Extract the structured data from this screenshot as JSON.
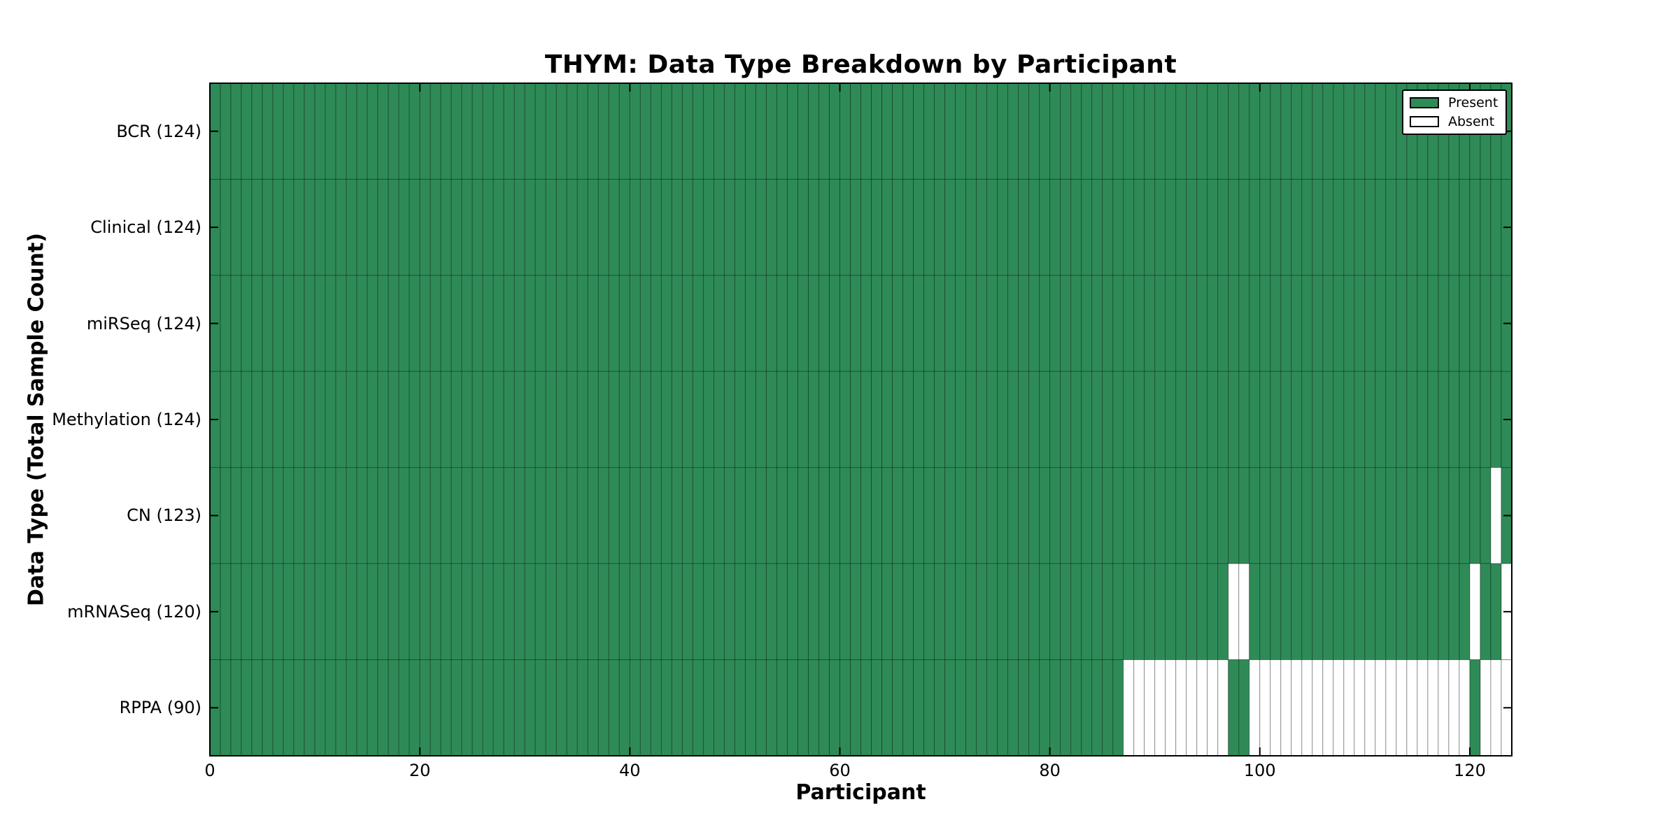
{
  "chart_data": {
    "type": "heatmap",
    "title": "THYM: Data Type Breakdown by Participant",
    "xlabel": "Participant",
    "ylabel": "Data Type (Total Sample Count)",
    "x_ticks": [
      0,
      20,
      40,
      60,
      80,
      100,
      120
    ],
    "xlim": [
      0,
      124
    ],
    "n_participants": 124,
    "grid": false,
    "legend_position": "upper right",
    "legend": [
      {
        "label": "Present",
        "color": "#2E8B57"
      },
      {
        "label": "Absent",
        "color": "#FFFFFF"
      }
    ],
    "colors": {
      "present": "#2E8B57",
      "absent": "#FFFFFF",
      "cell_edge": "rgba(0,0,0,0.35)",
      "spine": "#000000",
      "tick": "#000000"
    },
    "rows": [
      {
        "data_type": "BCR",
        "label": "BCR (124)",
        "present_count": 124,
        "absent_participants": []
      },
      {
        "data_type": "Clinical",
        "label": "Clinical (124)",
        "present_count": 124,
        "absent_participants": []
      },
      {
        "data_type": "miRSeq",
        "label": "miRSeq (124)",
        "present_count": 124,
        "absent_participants": []
      },
      {
        "data_type": "Methylation",
        "label": "Methylation (124)",
        "present_count": 124,
        "absent_participants": []
      },
      {
        "data_type": "CN",
        "label": "CN (123)",
        "present_count": 123,
        "absent_participants": [
          122
        ]
      },
      {
        "data_type": "mRNASeq",
        "label": "mRNASeq (120)",
        "present_count": 120,
        "absent_participants": [
          97,
          98,
          120,
          123
        ]
      },
      {
        "data_type": "RPPA",
        "label": "RPPA (90)",
        "present_count": 90,
        "absent_participants": [
          87,
          88,
          89,
          90,
          91,
          92,
          93,
          94,
          95,
          96,
          99,
          100,
          101,
          102,
          103,
          104,
          105,
          106,
          107,
          108,
          109,
          110,
          111,
          112,
          113,
          114,
          115,
          116,
          117,
          118,
          119,
          121,
          122,
          123
        ]
      }
    ]
  }
}
